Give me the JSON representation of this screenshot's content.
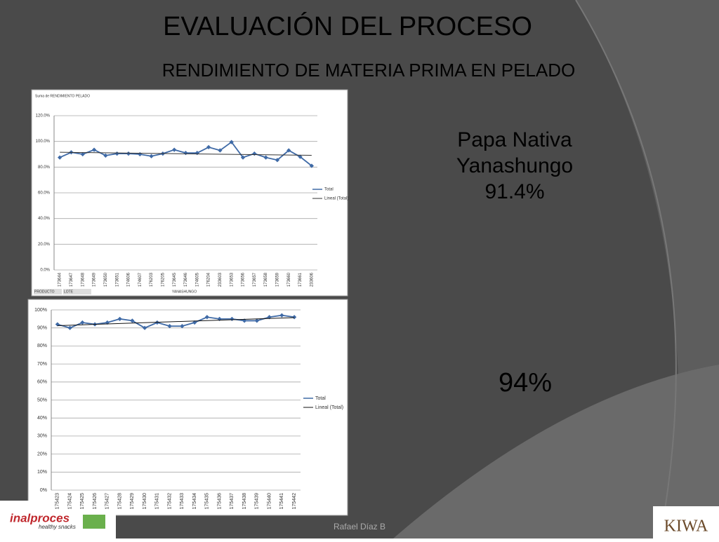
{
  "slide": {
    "title": "EVALUACIÓN DEL PROCESO",
    "subtitle": "RENDIMIENTO DE MATERIA PRIMA EN PELADO",
    "note1": [
      "Papa Nativa",
      "Yanashungo",
      "91.4%"
    ],
    "note2": "94%",
    "author": "Rafael Díaz B",
    "logo_left": [
      "inalproces",
      "healthy snacks"
    ],
    "logo_right": "KIWA"
  },
  "chart_data": [
    {
      "type": "line",
      "title": "Suma de RENDIMIENTO PELADO",
      "categories": [
        "173644",
        "173647",
        "173648",
        "173649",
        "173650",
        "173651",
        "174606",
        "174607",
        "176203",
        "176205",
        "173645",
        "173646",
        "174605",
        "176204",
        "233603",
        "173653",
        "173656",
        "173657",
        "173658",
        "173659",
        "173660",
        "173661",
        "233606"
      ],
      "series": [
        {
          "name": "Total",
          "color": "#3f6aa6",
          "values": [
            87.5,
            91.5,
            90,
            93.5,
            89,
            90.5,
            90.5,
            90,
            88.5,
            90.5,
            93.5,
            91,
            91,
            95.5,
            93,
            99.5,
            87.5,
            90.5,
            87.5,
            85.5,
            93,
            88,
            81
          ]
        }
      ],
      "trendline": {
        "name": "Lineal (Total)",
        "color": "#333333"
      },
      "ylim": [
        0,
        120
      ],
      "yticks": [
        {
          "value": 0,
          "label": "0.0%"
        },
        {
          "value": 20,
          "label": "20.0%"
        },
        {
          "value": 40,
          "label": "40.0%"
        },
        {
          "value": 60,
          "label": "60.0%"
        },
        {
          "value": 80,
          "label": "80.0%"
        },
        {
          "value": 100,
          "label": "100.0%"
        },
        {
          "value": 120,
          "label": "120.0%"
        }
      ],
      "grid": true,
      "fields": [
        "PRODUCTO",
        "LOTE"
      ],
      "group_label": "YANASHUNGO"
    },
    {
      "type": "line",
      "categories": [
        "175423",
        "175424",
        "175425",
        "175426",
        "175427",
        "175428",
        "175429",
        "175430",
        "175431",
        "175432",
        "175433",
        "175434",
        "175435",
        "175436",
        "175437",
        "175438",
        "175439",
        "175440",
        "175441",
        "175442"
      ],
      "series": [
        {
          "name": "Total",
          "color": "#3f6aa6",
          "values": [
            92,
            90,
            93,
            92,
            93,
            95,
            94,
            90,
            93,
            91,
            91,
            93,
            96,
            95,
            95,
            94,
            94,
            96,
            97,
            96
          ]
        }
      ],
      "trendline": {
        "name": "Lineal (Total)",
        "color": "#111111"
      },
      "ylim": [
        0,
        100
      ],
      "yticks": [
        {
          "value": 0,
          "label": "0%"
        },
        {
          "value": 10,
          "label": "10%"
        },
        {
          "value": 20,
          "label": "20%"
        },
        {
          "value": 30,
          "label": "30%"
        },
        {
          "value": 40,
          "label": "40%"
        },
        {
          "value": 50,
          "label": "50%"
        },
        {
          "value": 60,
          "label": "60%"
        },
        {
          "value": 70,
          "label": "70%"
        },
        {
          "value": 80,
          "label": "80%"
        },
        {
          "value": 90,
          "label": "90%"
        },
        {
          "value": 100,
          "label": "100%"
        }
      ],
      "grid": true
    }
  ]
}
